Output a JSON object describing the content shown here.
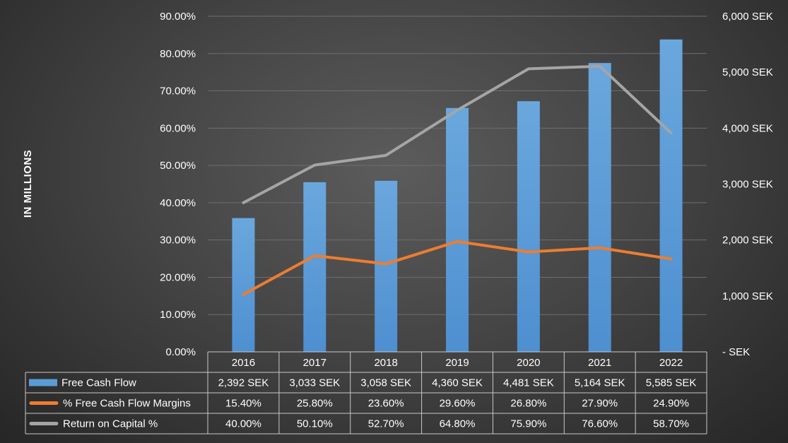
{
  "chart_data": {
    "type": "bar",
    "ylabel": "IN MILLIONS",
    "categories": [
      "2016",
      "2017",
      "2018",
      "2019",
      "2020",
      "2021",
      "2022"
    ],
    "y_left_ticks": [
      "0.00%",
      "10.00%",
      "20.00%",
      "30.00%",
      "40.00%",
      "50.00%",
      "60.00%",
      "70.00%",
      "80.00%",
      "90.00%"
    ],
    "y_right_ticks": [
      "-   SEK",
      "1,000 SEK",
      "2,000 SEK",
      "3,000 SEK",
      "4,000 SEK",
      "5,000 SEK",
      "6,000 SEK"
    ],
    "ylim_left": [
      0,
      0.9
    ],
    "ylim_right": [
      0,
      6000
    ],
    "grid": true,
    "legend_placement": "data table below plot",
    "series": [
      {
        "name": "Free Cash Flow",
        "kind": "bar",
        "axis": "right",
        "color": "#5b9bd5",
        "values": [
          2392,
          3033,
          3058,
          4360,
          4481,
          5164,
          5585
        ],
        "labels": [
          "2,392 SEK",
          "3,033 SEK",
          "3,058 SEK",
          "4,360 SEK",
          "4,481 SEK",
          "5,164 SEK",
          "5,585 SEK"
        ]
      },
      {
        "name": "% Free Cash Flow Margins",
        "kind": "line",
        "axis": "left",
        "color": "#ed7d31",
        "values": [
          0.154,
          0.258,
          0.236,
          0.296,
          0.268,
          0.279,
          0.249
        ],
        "labels": [
          "15.40%",
          "25.80%",
          "23.60%",
          "29.60%",
          "26.80%",
          "27.90%",
          "24.90%"
        ]
      },
      {
        "name": "Return on Capital %",
        "kind": "line",
        "axis": "left",
        "color": "#a5a5a5",
        "values": [
          0.4,
          0.501,
          0.527,
          0.648,
          0.759,
          0.766,
          0.587
        ],
        "labels": [
          "40.00%",
          "50.10%",
          "52.70%",
          "64.80%",
          "75.90%",
          "76.60%",
          "58.70%"
        ]
      }
    ]
  }
}
